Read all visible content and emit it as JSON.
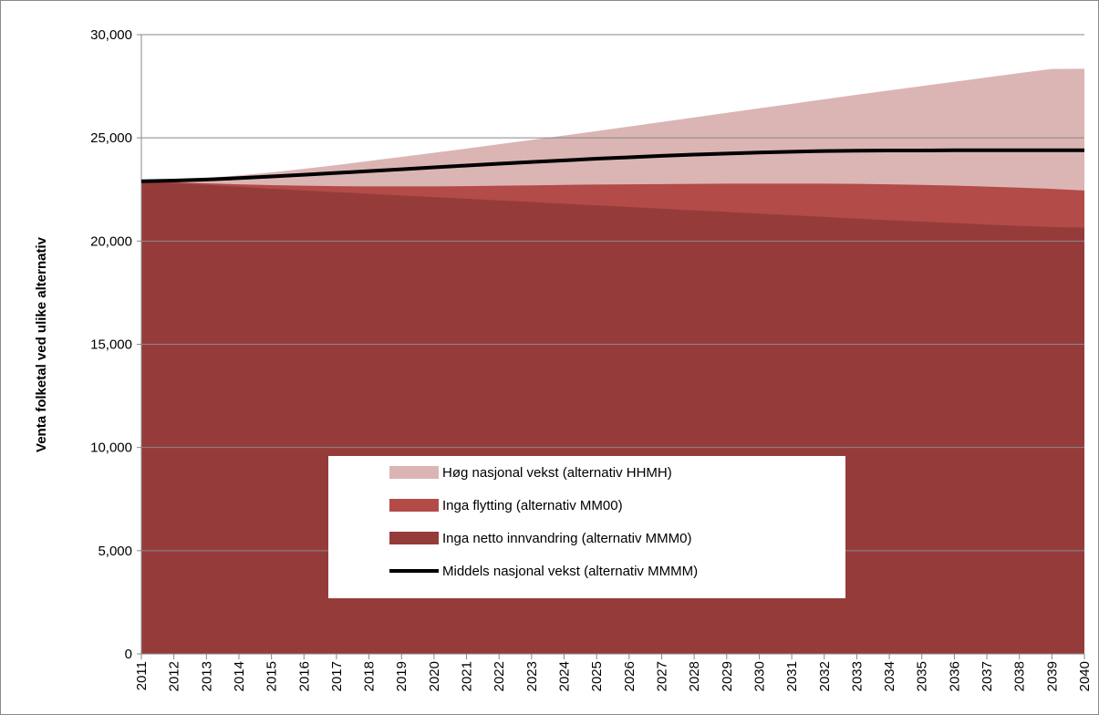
{
  "chart_data": {
    "type": "area",
    "y_label": "Venta folketal ved ulike alternativ",
    "x": [
      2011,
      2012,
      2013,
      2014,
      2015,
      2016,
      2017,
      2018,
      2019,
      2020,
      2021,
      2022,
      2023,
      2024,
      2025,
      2026,
      2027,
      2028,
      2029,
      2030,
      2031,
      2032,
      2033,
      2034,
      2035,
      2036,
      2037,
      2038,
      2039,
      2040
    ],
    "xlim": [
      2011,
      2040
    ],
    "ylim": [
      0,
      30000
    ],
    "yticks": [
      0,
      {
        "value": 5000,
        "label": "5,000"
      },
      {
        "value": 10000,
        "label": "10,000"
      },
      {
        "value": 15000,
        "label": "15,000"
      },
      {
        "value": 20000,
        "label": "20,000"
      },
      {
        "value": 25000,
        "label": "25,000"
      },
      {
        "value": 30000,
        "label": "30,000"
      }
    ],
    "grid": true,
    "series": [
      {
        "name": "Høg nasjonal vekst (alternativ HHMH)",
        "color": "#dbb5b4",
        "kind": "area",
        "values": [
          22900,
          22950,
          23050,
          23180,
          23330,
          23500,
          23680,
          23880,
          24080,
          24280,
          24480,
          24690,
          24900,
          25110,
          25330,
          25550,
          25770,
          25990,
          26210,
          26430,
          26650,
          26870,
          27090,
          27300,
          27510,
          27720,
          27930,
          28140,
          28340,
          28350
        ]
      },
      {
        "name": "Inga flytting (alternativ MM00)",
        "color": "#b34b48",
        "kind": "area",
        "values": [
          22900,
          22850,
          22800,
          22750,
          22710,
          22680,
          22660,
          22650,
          22650,
          22650,
          22660,
          22680,
          22700,
          22720,
          22740,
          22750,
          22760,
          22770,
          22780,
          22780,
          22780,
          22780,
          22770,
          22750,
          22720,
          22690,
          22640,
          22590,
          22530,
          22450
        ]
      },
      {
        "name": "Inga netto innvandring (alternativ MMM0)",
        "color": "#953c3b",
        "kind": "area",
        "values": [
          22900,
          22810,
          22720,
          22630,
          22540,
          22450,
          22370,
          22290,
          22210,
          22130,
          22050,
          21970,
          21890,
          21810,
          21730,
          21650,
          21570,
          21490,
          21410,
          21330,
          21250,
          21170,
          21090,
          21010,
          20940,
          20870,
          20800,
          20740,
          20680,
          20650
        ]
      },
      {
        "name": "Middels nasjonal vekst (alternativ MMMM)",
        "color": "#000000",
        "kind": "line",
        "values": [
          22900,
          22930,
          22980,
          23050,
          23130,
          23210,
          23300,
          23390,
          23480,
          23570,
          23660,
          23750,
          23830,
          23910,
          23990,
          24060,
          24130,
          24190,
          24240,
          24290,
          24330,
          24360,
          24380,
          24390,
          24390,
          24400,
          24400,
          24400,
          24400,
          24400
        ]
      }
    ]
  }
}
